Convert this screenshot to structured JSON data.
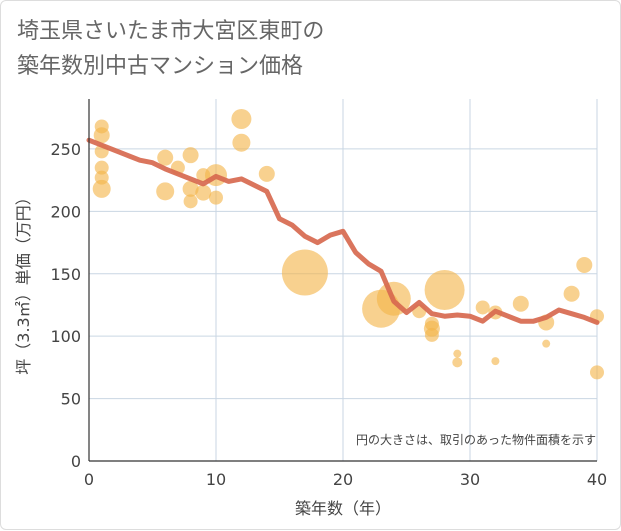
{
  "title_line1": "埼玉県さいたま市大宮区東町の",
  "title_line2": "築年数別中古マンション価格",
  "note": "円の大きさは、取引のあった物件面積を示す",
  "colors": {
    "bubble": "#f3b54a",
    "line": "#d7694f",
    "grid": "#c9d6e3",
    "axis": "#333333"
  },
  "chart_data": {
    "type": "scatter",
    "xlabel": "築年数（年）",
    "ylabel": "坪（3.3㎡）単価（万円）",
    "xlim": [
      0,
      40
    ],
    "ylim": [
      0,
      290
    ],
    "xticks": [
      0,
      10,
      20,
      30,
      40
    ],
    "yticks": [
      0,
      50,
      100,
      150,
      200,
      250
    ],
    "grid": true,
    "scatter": [
      {
        "x": 1,
        "y": 268,
        "r": 7
      },
      {
        "x": 1,
        "y": 261,
        "r": 8
      },
      {
        "x": 1,
        "y": 248,
        "r": 7
      },
      {
        "x": 1,
        "y": 235,
        "r": 7
      },
      {
        "x": 1,
        "y": 227,
        "r": 7
      },
      {
        "x": 1,
        "y": 218,
        "r": 9
      },
      {
        "x": 6,
        "y": 243,
        "r": 8
      },
      {
        "x": 6,
        "y": 216,
        "r": 9
      },
      {
        "x": 7,
        "y": 235,
        "r": 7
      },
      {
        "x": 8,
        "y": 245,
        "r": 8
      },
      {
        "x": 8,
        "y": 218,
        "r": 8
      },
      {
        "x": 8,
        "y": 208,
        "r": 7
      },
      {
        "x": 9,
        "y": 229,
        "r": 7
      },
      {
        "x": 9,
        "y": 215,
        "r": 8
      },
      {
        "x": 10,
        "y": 229,
        "r": 11
      },
      {
        "x": 10,
        "y": 211,
        "r": 7
      },
      {
        "x": 12,
        "y": 274,
        "r": 10
      },
      {
        "x": 12,
        "y": 255,
        "r": 9
      },
      {
        "x": 14,
        "y": 230,
        "r": 8
      },
      {
        "x": 17,
        "y": 151,
        "r": 23
      },
      {
        "x": 23,
        "y": 122,
        "r": 19
      },
      {
        "x": 24,
        "y": 130,
        "r": 17
      },
      {
        "x": 26,
        "y": 120,
        "r": 7
      },
      {
        "x": 27,
        "y": 110,
        "r": 7
      },
      {
        "x": 27,
        "y": 106,
        "r": 8
      },
      {
        "x": 27,
        "y": 101,
        "r": 7
      },
      {
        "x": 28,
        "y": 137,
        "r": 20
      },
      {
        "x": 29,
        "y": 86,
        "r": 4
      },
      {
        "x": 29,
        "y": 79,
        "r": 5
      },
      {
        "x": 31,
        "y": 123,
        "r": 7
      },
      {
        "x": 32,
        "y": 119,
        "r": 7
      },
      {
        "x": 32,
        "y": 80,
        "r": 4
      },
      {
        "x": 34,
        "y": 126,
        "r": 8
      },
      {
        "x": 36,
        "y": 111,
        "r": 8
      },
      {
        "x": 36,
        "y": 94,
        "r": 4
      },
      {
        "x": 38,
        "y": 134,
        "r": 8
      },
      {
        "x": 39,
        "y": 157,
        "r": 8
      },
      {
        "x": 40,
        "y": 116,
        "r": 7
      },
      {
        "x": 40,
        "y": 71,
        "r": 7
      }
    ],
    "line": [
      {
        "x": 0,
        "y": 257
      },
      {
        "x": 1,
        "y": 253
      },
      {
        "x": 2,
        "y": 249
      },
      {
        "x": 3,
        "y": 245
      },
      {
        "x": 4,
        "y": 241
      },
      {
        "x": 5,
        "y": 239
      },
      {
        "x": 6,
        "y": 234
      },
      {
        "x": 7,
        "y": 230
      },
      {
        "x": 8,
        "y": 226
      },
      {
        "x": 9,
        "y": 222
      },
      {
        "x": 10,
        "y": 228
      },
      {
        "x": 11,
        "y": 224
      },
      {
        "x": 12,
        "y": 226
      },
      {
        "x": 13,
        "y": 221
      },
      {
        "x": 14,
        "y": 216
      },
      {
        "x": 15,
        "y": 194
      },
      {
        "x": 16,
        "y": 189
      },
      {
        "x": 17,
        "y": 180
      },
      {
        "x": 18,
        "y": 175
      },
      {
        "x": 19,
        "y": 181
      },
      {
        "x": 20,
        "y": 184
      },
      {
        "x": 21,
        "y": 167
      },
      {
        "x": 22,
        "y": 158
      },
      {
        "x": 23,
        "y": 152
      },
      {
        "x": 24,
        "y": 128
      },
      {
        "x": 25,
        "y": 119
      },
      {
        "x": 26,
        "y": 127
      },
      {
        "x": 27,
        "y": 118
      },
      {
        "x": 28,
        "y": 116
      },
      {
        "x": 29,
        "y": 117
      },
      {
        "x": 30,
        "y": 116
      },
      {
        "x": 31,
        "y": 112
      },
      {
        "x": 32,
        "y": 120
      },
      {
        "x": 33,
        "y": 116
      },
      {
        "x": 34,
        "y": 112
      },
      {
        "x": 35,
        "y": 112
      },
      {
        "x": 36,
        "y": 115
      },
      {
        "x": 37,
        "y": 121
      },
      {
        "x": 38,
        "y": 118
      },
      {
        "x": 39,
        "y": 115
      },
      {
        "x": 40,
        "y": 111
      }
    ]
  }
}
